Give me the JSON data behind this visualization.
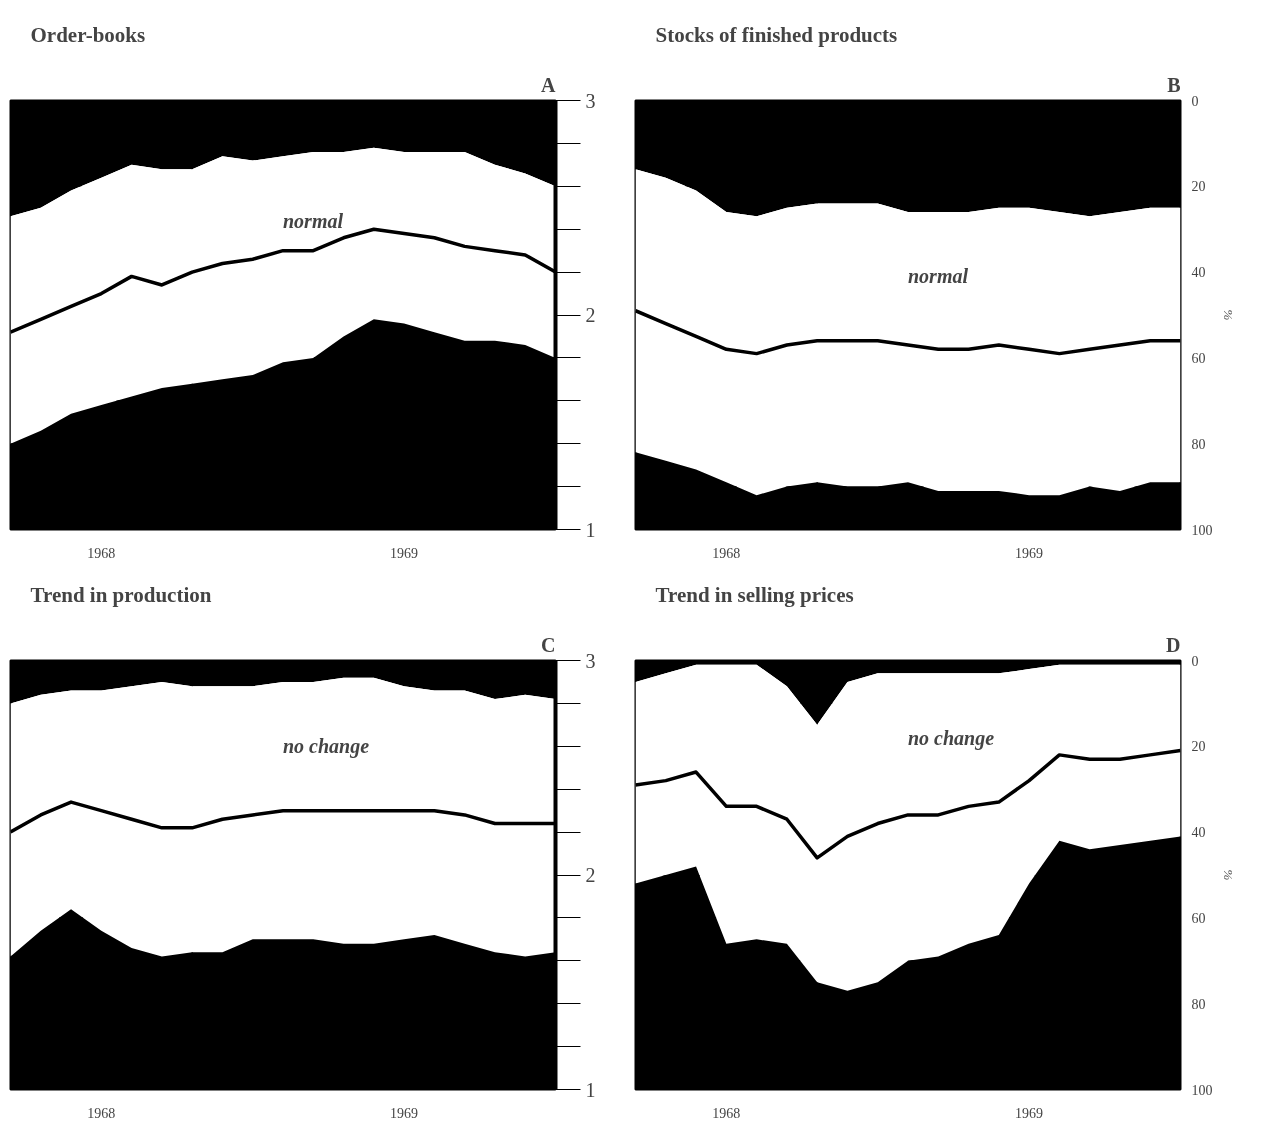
{
  "chart_data": [
    {
      "type": "area",
      "title": "Order-books",
      "annotations": [
        "A",
        "normal",
        "3",
        "2",
        "1"
      ],
      "stacked": true,
      "grid": "y",
      "tick_labels": "x",
      "x": [
        1967.7,
        1967.8,
        1967.9,
        1968.0,
        1968.1,
        1968.2,
        1968.3,
        1968.4,
        1968.5,
        1968.6,
        1968.7,
        1968.8,
        1968.9,
        1969.0,
        1969.1,
        1969.2,
        1969.3,
        1969.4,
        1969.5
      ],
      "xlim": [
        1967.7,
        1969.5
      ],
      "xticks": [
        1968,
        1969
      ],
      "ylim": [
        100,
        0
      ],
      "yticks": [
        {
          "value": 0,
          "label": null
        },
        {
          "value": 10,
          "label": null
        },
        {
          "value": 20,
          "label": null
        },
        {
          "value": 30,
          "label": null
        },
        {
          "value": 40,
          "label": null
        },
        {
          "value": 50,
          "label": null
        },
        {
          "value": 60,
          "label": null
        },
        {
          "value": 70,
          "label": null
        },
        {
          "value": 80,
          "label": null
        },
        {
          "value": 90,
          "label": null
        },
        {
          "value": 100,
          "label": null
        }
      ],
      "ref_lines": [
        {
          "axis": "x",
          "value": 1968.3
        }
      ],
      "series": [
        {
          "color": "#000000",
          "values": [
            27,
            25,
            21,
            18,
            15,
            16,
            16,
            13,
            14,
            13,
            12,
            12,
            11,
            12,
            12,
            12,
            15,
            17,
            20
          ]
        },
        {
          "color": "#ffffff",
          "values": [
            53,
            52,
            52,
            53,
            54,
            51,
            50,
            52,
            50,
            48,
            48,
            43,
            40,
            40,
            42,
            44,
            41,
            40,
            40
          ]
        },
        {
          "color": "#000000",
          "values": [
            20,
            23,
            27,
            29,
            31,
            33,
            34,
            35,
            36,
            39,
            40,
            45,
            49,
            48,
            46,
            44,
            44,
            43,
            40
          ]
        },
        {
          "type": "line",
          "color": "#000000",
          "values": [
            54,
            51,
            48,
            45,
            41,
            43,
            40,
            38,
            37,
            35,
            35,
            32,
            30,
            31,
            32,
            34,
            35,
            36,
            40
          ]
        }
      ]
    },
    {
      "type": "area",
      "title": "Stocks of finished products",
      "ylabel": "%",
      "annotations": [
        "B",
        "normal"
      ],
      "stacked": true,
      "grid": "y",
      "x": [
        1967.7,
        1967.8,
        1967.9,
        1968.0,
        1968.1,
        1968.2,
        1968.3,
        1968.4,
        1968.5,
        1968.6,
        1968.7,
        1968.8,
        1968.9,
        1969.0,
        1969.1,
        1969.2,
        1969.3,
        1969.4,
        1969.5
      ],
      "xlim": [
        1967.7,
        1969.5
      ],
      "xticks": [
        1968,
        1969
      ],
      "ylim": [
        100,
        0
      ],
      "yticks": [
        0,
        {
          "value": 10,
          "label": null
        },
        20,
        {
          "value": 30,
          "label": null
        },
        40,
        {
          "value": 50,
          "label": null
        },
        60,
        {
          "value": 70,
          "label": null
        },
        80,
        {
          "value": 90,
          "label": null
        },
        100
      ],
      "ref_lines": [
        {
          "axis": "x",
          "value": 1968.3
        }
      ],
      "series": [
        {
          "color": "#000000",
          "values": [
            16,
            18,
            21,
            26,
            27,
            25,
            24,
            24,
            24,
            26,
            26,
            26,
            25,
            25,
            26,
            27,
            26,
            25,
            25
          ]
        },
        {
          "color": "#ffffff",
          "values": [
            66,
            66,
            65,
            63,
            65,
            65,
            65,
            66,
            66,
            63,
            65,
            65,
            66,
            67,
            66,
            63,
            65,
            64,
            64
          ]
        },
        {
          "color": "#000000",
          "values": [
            18,
            16,
            14,
            11,
            8,
            10,
            11,
            10,
            10,
            11,
            9,
            9,
            9,
            8,
            8,
            10,
            9,
            11,
            11
          ]
        },
        {
          "type": "line",
          "color": "#000000",
          "values": [
            49,
            52,
            55,
            58,
            59,
            57,
            56,
            56,
            56,
            57,
            58,
            58,
            57,
            58,
            59,
            58,
            57,
            56,
            56
          ]
        }
      ]
    },
    {
      "type": "area",
      "title": "Trend in production",
      "annotations": [
        "C",
        "no change",
        "3",
        "2",
        "1"
      ],
      "stacked": true,
      "grid": "y",
      "tick_labels": "x",
      "x": [
        1967.7,
        1967.8,
        1967.9,
        1968.0,
        1968.1,
        1968.2,
        1968.3,
        1968.4,
        1968.5,
        1968.6,
        1968.7,
        1968.8,
        1968.9,
        1969.0,
        1969.1,
        1969.2,
        1969.3,
        1969.4,
        1969.5
      ],
      "xlim": [
        1967.7,
        1969.5
      ],
      "xticks": [
        1968,
        1969
      ],
      "ylim": [
        100,
        0
      ],
      "yticks": [
        {
          "value": 0,
          "label": null
        },
        {
          "value": 10,
          "label": null
        },
        {
          "value": 20,
          "label": null
        },
        {
          "value": 30,
          "label": null
        },
        {
          "value": 40,
          "label": null
        },
        {
          "value": 50,
          "label": null
        },
        {
          "value": 60,
          "label": null
        },
        {
          "value": 70,
          "label": null
        },
        {
          "value": 80,
          "label": null
        },
        {
          "value": 90,
          "label": null
        },
        {
          "value": 100,
          "label": null
        }
      ],
      "ref_lines": [
        {
          "axis": "x",
          "value": 1968.3
        }
      ],
      "series": [
        {
          "color": "#000000",
          "values": [
            10,
            8,
            7,
            7,
            6,
            5,
            6,
            6,
            6,
            5,
            5,
            4,
            4,
            6,
            7,
            7,
            9,
            8,
            9
          ]
        },
        {
          "color": "#ffffff",
          "values": [
            59,
            55,
            51,
            56,
            61,
            64,
            62,
            62,
            59,
            60,
            60,
            62,
            62,
            59,
            57,
            59,
            59,
            61,
            59
          ]
        },
        {
          "color": "#000000",
          "values": [
            31,
            37,
            42,
            37,
            33,
            31,
            32,
            32,
            35,
            35,
            35,
            34,
            34,
            35,
            36,
            34,
            32,
            31,
            32
          ]
        },
        {
          "type": "line",
          "color": "#000000",
          "values": [
            40,
            36,
            33,
            35,
            37,
            39,
            39,
            37,
            36,
            35,
            35,
            35,
            35,
            35,
            35,
            36,
            38,
            38,
            38
          ]
        }
      ]
    },
    {
      "type": "area",
      "title": "Trend in selling prices",
      "ylabel": "%",
      "annotations": [
        "D",
        "no change"
      ],
      "stacked": true,
      "grid": "y",
      "x": [
        1967.7,
        1967.8,
        1967.9,
        1968.0,
        1968.1,
        1968.2,
        1968.3,
        1968.4,
        1968.5,
        1968.6,
        1968.7,
        1968.8,
        1968.9,
        1969.0,
        1969.1,
        1969.2,
        1969.3,
        1969.4,
        1969.5
      ],
      "xlim": [
        1967.7,
        1969.5
      ],
      "xticks": [
        1968,
        1969
      ],
      "ylim": [
        100,
        0
      ],
      "yticks": [
        0,
        {
          "value": 10,
          "label": null
        },
        20,
        {
          "value": 30,
          "label": null
        },
        40,
        {
          "value": 50,
          "label": null
        },
        60,
        {
          "value": 70,
          "label": null
        },
        80,
        {
          "value": 90,
          "label": null
        },
        100
      ],
      "ref_lines": [
        {
          "axis": "x",
          "value": 1968.3
        }
      ],
      "series": [
        {
          "color": "#000000",
          "values": [
            5,
            3,
            1,
            1,
            1,
            6,
            15,
            5,
            3,
            3,
            3,
            3,
            3,
            2,
            1,
            1,
            1,
            1,
            1
          ]
        },
        {
          "color": "#ffffff",
          "values": [
            47,
            47,
            47,
            65,
            64,
            60,
            60,
            72,
            72,
            67,
            66,
            63,
            61,
            50,
            41,
            43,
            42,
            41,
            40
          ]
        },
        {
          "color": "#000000",
          "values": [
            48,
            50,
            52,
            34,
            35,
            34,
            25,
            23,
            25,
            30,
            31,
            34,
            36,
            48,
            58,
            56,
            57,
            58,
            59
          ]
        },
        {
          "type": "line",
          "color": "#000000",
          "values": [
            29,
            28,
            26,
            34,
            34,
            37,
            46,
            41,
            38,
            36,
            36,
            34,
            33,
            28,
            22,
            23,
            23,
            22,
            21
          ]
        }
      ]
    }
  ]
}
